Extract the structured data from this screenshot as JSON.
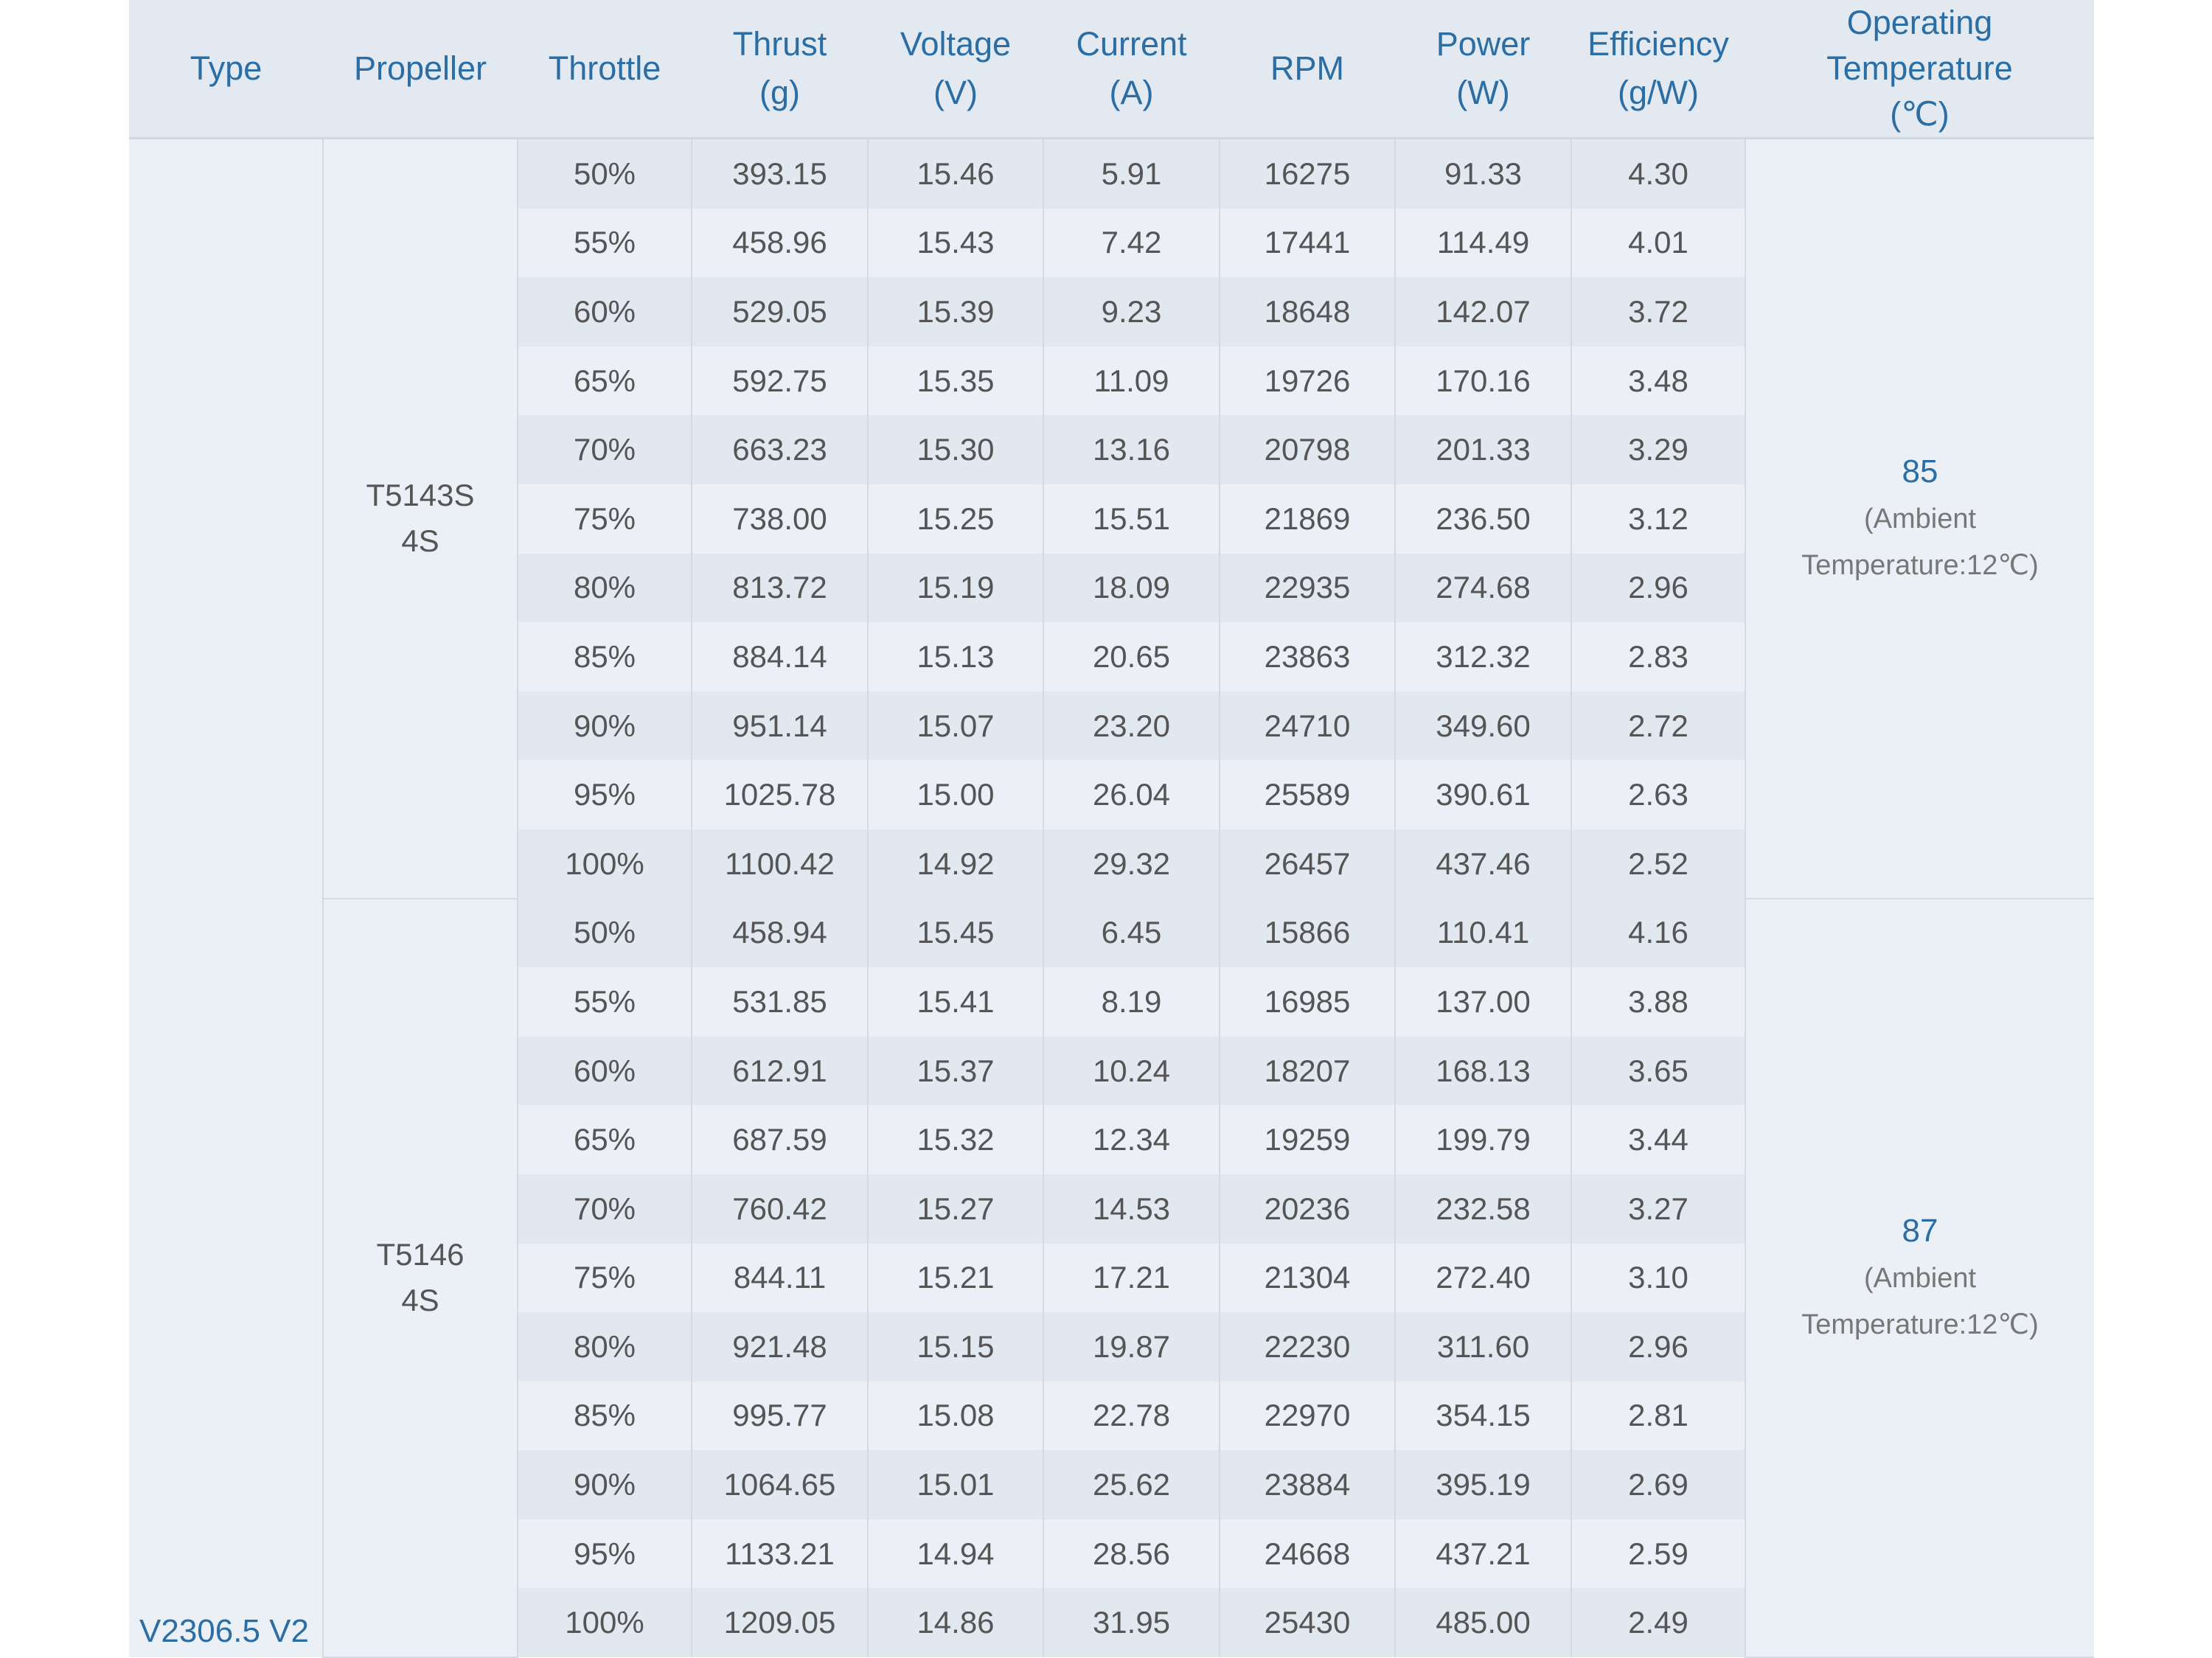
{
  "headers": {
    "type": "Type",
    "propeller": "Propeller",
    "throttle": "Throttle",
    "thrust": [
      "Thrust",
      "(g)"
    ],
    "voltage": [
      "Voltage",
      "(V)"
    ],
    "current": [
      "Current",
      "(A)"
    ],
    "rpm": "RPM",
    "power": [
      "Power",
      "(W)"
    ],
    "efficiency": [
      "Efficiency",
      "(g/W)"
    ],
    "temp": [
      "Operating",
      "Temperature",
      "(℃)"
    ]
  },
  "type": "V2306.5 V2",
  "groups": [
    {
      "propeller": [
        "T5143S",
        "4S"
      ],
      "temp": "85",
      "ambient": [
        "(Ambient",
        "Temperature:12℃)"
      ],
      "rows": [
        [
          "50%",
          "393.15",
          "15.46",
          "5.91",
          "16275",
          "91.33",
          "4.30"
        ],
        [
          "55%",
          "458.96",
          "15.43",
          "7.42",
          "17441",
          "114.49",
          "4.01"
        ],
        [
          "60%",
          "529.05",
          "15.39",
          "9.23",
          "18648",
          "142.07",
          "3.72"
        ],
        [
          "65%",
          "592.75",
          "15.35",
          "11.09",
          "19726",
          "170.16",
          "3.48"
        ],
        [
          "70%",
          "663.23",
          "15.30",
          "13.16",
          "20798",
          "201.33",
          "3.29"
        ],
        [
          "75%",
          "738.00",
          "15.25",
          "15.51",
          "21869",
          "236.50",
          "3.12"
        ],
        [
          "80%",
          "813.72",
          "15.19",
          "18.09",
          "22935",
          "274.68",
          "2.96"
        ],
        [
          "85%",
          "884.14",
          "15.13",
          "20.65",
          "23863",
          "312.32",
          "2.83"
        ],
        [
          "90%",
          "951.14",
          "15.07",
          "23.20",
          "24710",
          "349.60",
          "2.72"
        ],
        [
          "95%",
          "1025.78",
          "15.00",
          "26.04",
          "25589",
          "390.61",
          "2.63"
        ],
        [
          "100%",
          "1100.42",
          "14.92",
          "29.32",
          "26457",
          "437.46",
          "2.52"
        ]
      ]
    },
    {
      "propeller": [
        "T5146",
        "4S"
      ],
      "temp": "87",
      "ambient": [
        "(Ambient",
        "Temperature:12℃)"
      ],
      "rows": [
        [
          "50%",
          "458.94",
          "15.45",
          "6.45",
          "15866",
          "110.41",
          "4.16"
        ],
        [
          "55%",
          "531.85",
          "15.41",
          "8.19",
          "16985",
          "137.00",
          "3.88"
        ],
        [
          "60%",
          "612.91",
          "15.37",
          "10.24",
          "18207",
          "168.13",
          "3.65"
        ],
        [
          "65%",
          "687.59",
          "15.32",
          "12.34",
          "19259",
          "199.79",
          "3.44"
        ],
        [
          "70%",
          "760.42",
          "15.27",
          "14.53",
          "20236",
          "232.58",
          "3.27"
        ],
        [
          "75%",
          "844.11",
          "15.21",
          "17.21",
          "21304",
          "272.40",
          "3.10"
        ],
        [
          "80%",
          "921.48",
          "15.15",
          "19.87",
          "22230",
          "311.60",
          "2.96"
        ],
        [
          "85%",
          "995.77",
          "15.08",
          "22.78",
          "22970",
          "354.15",
          "2.81"
        ],
        [
          "90%",
          "1064.65",
          "15.01",
          "25.62",
          "23884",
          "395.19",
          "2.69"
        ],
        [
          "95%",
          "1133.21",
          "14.94",
          "28.56",
          "24668",
          "437.21",
          "2.59"
        ],
        [
          "100%",
          "1209.05",
          "14.86",
          "31.95",
          "25430",
          "485.00",
          "2.49"
        ]
      ]
    }
  ]
}
